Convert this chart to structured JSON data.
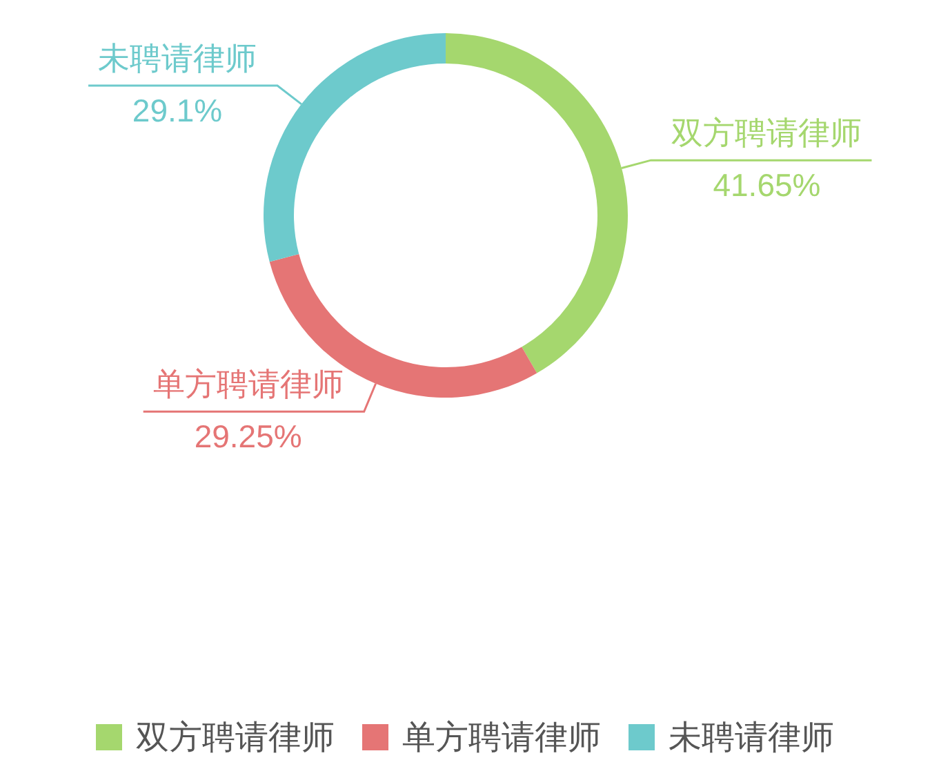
{
  "chart_data": {
    "type": "donut",
    "categories": [
      "双方聘请律师",
      "单方聘请律师",
      "未聘请律师"
    ],
    "values": [
      41.65,
      29.25,
      29.1
    ],
    "colors": [
      "#a5d76e",
      "#e57575",
      "#6dcacc"
    ],
    "value_labels": [
      "41.65%",
      "29.25%",
      "29.1%"
    ],
    "legend": "bottom"
  }
}
